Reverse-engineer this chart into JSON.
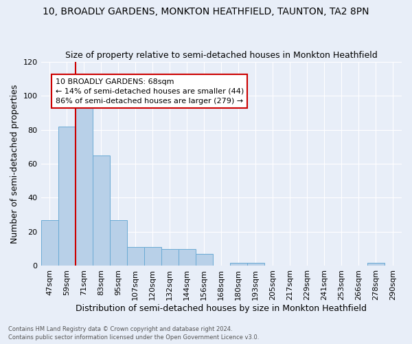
{
  "title": "10, BROADLY GARDENS, MONKTON HEATHFIELD, TAUNTON, TA2 8PN",
  "subtitle": "Size of property relative to semi-detached houses in Monkton Heathfield",
  "xlabel": "Distribution of semi-detached houses by size in Monkton Heathfield",
  "ylabel": "Number of semi-detached properties",
  "footer_line1": "Contains HM Land Registry data © Crown copyright and database right 2024.",
  "footer_line2": "Contains public sector information licensed under the Open Government Licence v3.0.",
  "categories": [
    "47sqm",
    "59sqm",
    "71sqm",
    "83sqm",
    "95sqm",
    "107sqm",
    "120sqm",
    "132sqm",
    "144sqm",
    "156sqm",
    "168sqm",
    "180sqm",
    "193sqm",
    "205sqm",
    "217sqm",
    "229sqm",
    "241sqm",
    "253sqm",
    "266sqm",
    "278sqm",
    "290sqm"
  ],
  "values": [
    27,
    82,
    96,
    65,
    27,
    11,
    11,
    10,
    10,
    7,
    0,
    2,
    2,
    0,
    0,
    0,
    0,
    0,
    0,
    2,
    0
  ],
  "bar_color": "#b8d0e8",
  "bar_edge_color": "#6aaad4",
  "property_line_x": 1.5,
  "property_label": "10 BROADLY GARDENS: 68sqm",
  "smaller_pct": "14%",
  "smaller_count": 44,
  "larger_pct": "86%",
  "larger_count": 279,
  "annotation_box_color": "#ffffff",
  "annotation_box_edge": "#cc0000",
  "line_color": "#cc0000",
  "ylim": [
    0,
    120
  ],
  "yticks": [
    0,
    20,
    40,
    60,
    80,
    100,
    120
  ],
  "background_color": "#e8eef8",
  "grid_color": "#ffffff",
  "title_fontsize": 10,
  "subtitle_fontsize": 9,
  "axis_label_fontsize": 9,
  "tick_fontsize": 8,
  "annotation_fontsize": 8
}
